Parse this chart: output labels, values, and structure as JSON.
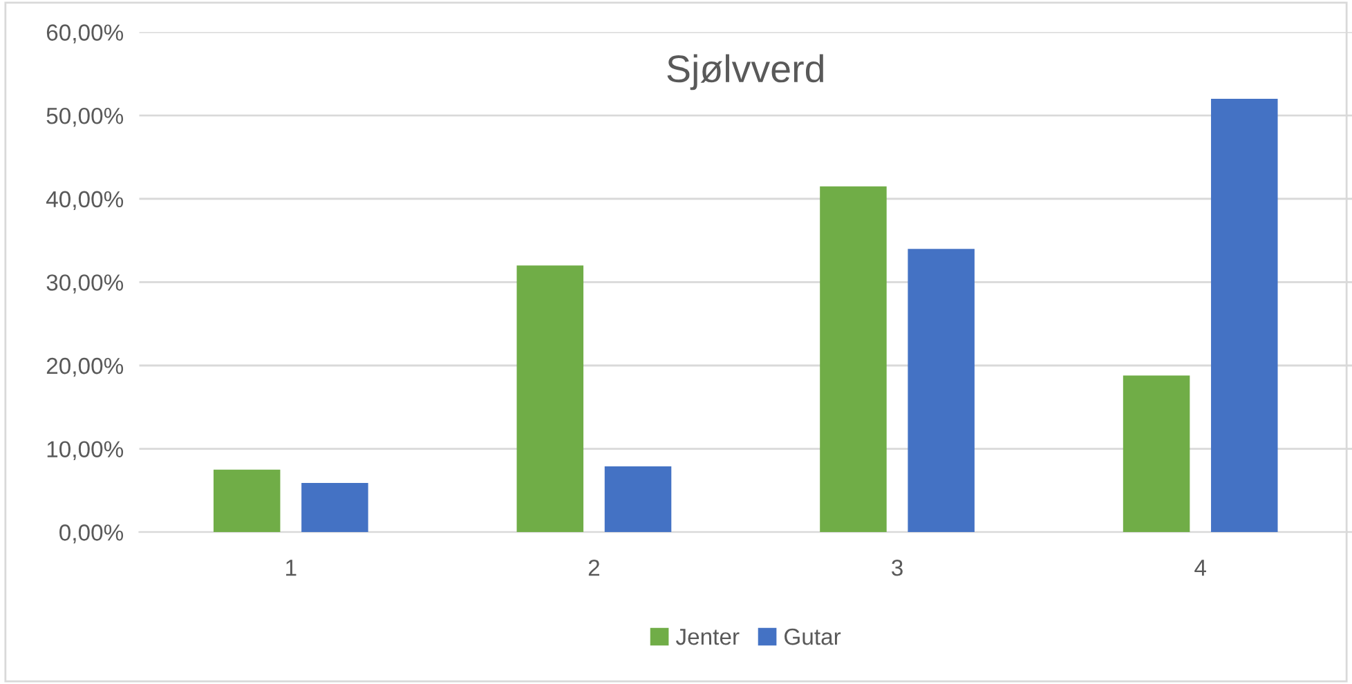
{
  "chart_data": {
    "type": "bar",
    "title": "Sjølvverd",
    "categories": [
      "1",
      "2",
      "3",
      "4"
    ],
    "series": [
      {
        "name": "Jenter",
        "color": "#70ad47",
        "values": [
          7.5,
          32,
          41.5,
          18.8
        ]
      },
      {
        "name": "Gutar",
        "color": "#4472c4",
        "values": [
          5.9,
          7.9,
          34,
          52
        ]
      }
    ],
    "ylim": [
      0,
      60
    ],
    "yticks": [
      {
        "value": 0,
        "label": "0,00%"
      },
      {
        "value": 10,
        "label": "10,00%"
      },
      {
        "value": 20,
        "label": "20,00%"
      },
      {
        "value": 30,
        "label": "30,00%"
      },
      {
        "value": 40,
        "label": "40,00%"
      },
      {
        "value": 50,
        "label": "50,00%"
      },
      {
        "value": 60,
        "label": "60,00%"
      }
    ],
    "grid": "y",
    "legend": "bottom"
  }
}
